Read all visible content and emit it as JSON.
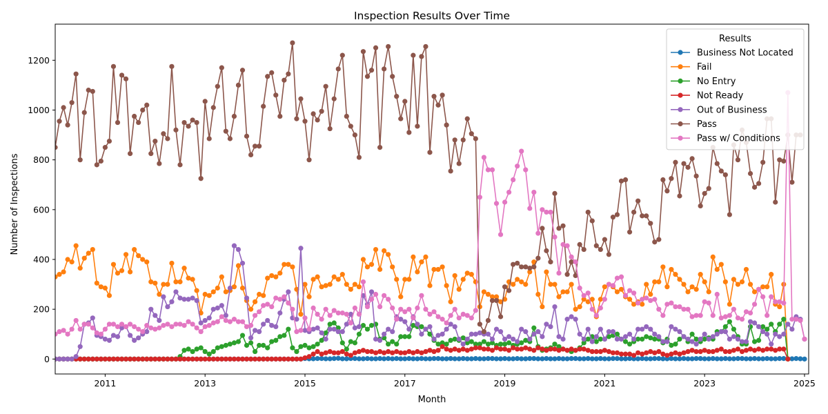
{
  "chart_data": {
    "type": "line",
    "title": "Inspection Results Over Time",
    "xlabel": "Month",
    "ylabel": "Number of Inspections",
    "x_start": "2010-01",
    "x_end": "2025-01",
    "xlim": [
      "2010-01",
      "2025-02"
    ],
    "ylim": [
      -60,
      1345
    ],
    "xticks": [
      {
        "date": "2011-01",
        "label": "2011"
      },
      {
        "date": "2013-01",
        "label": "2013"
      },
      {
        "date": "2015-01",
        "label": "2015"
      },
      {
        "date": "2017-01",
        "label": "2017"
      },
      {
        "date": "2019-01",
        "label": "2019"
      },
      {
        "date": "2021-01",
        "label": "2021"
      },
      {
        "date": "2023-01",
        "label": "2023"
      },
      {
        "date": "2025-01",
        "label": "2025"
      }
    ],
    "yticks": [
      0,
      200,
      400,
      600,
      800,
      1000,
      1200
    ],
    "grid": false,
    "legend": {
      "title": "Results",
      "position": "top-right"
    },
    "series": [
      {
        "name": "Business Not Located",
        "color": "#1f77b4",
        "values": [
          0,
          0,
          0,
          0,
          0,
          0,
          0,
          0,
          0,
          0,
          0,
          0,
          0,
          0,
          0,
          0,
          0,
          0,
          0,
          0,
          0,
          0,
          0,
          0,
          0,
          0,
          0,
          0,
          0,
          0,
          0,
          0,
          0,
          0,
          0,
          0,
          0,
          0,
          0,
          0,
          0,
          0,
          0,
          0,
          0,
          0,
          0,
          0,
          0,
          0,
          0,
          0,
          0,
          0,
          0,
          0,
          0,
          0,
          0,
          0,
          2,
          1,
          1,
          2,
          2,
          1,
          1,
          2,
          3,
          1,
          1,
          2,
          2,
          1,
          1,
          2,
          1,
          1,
          2,
          1,
          2,
          1,
          2,
          1,
          1,
          2,
          1,
          1,
          2,
          1,
          1,
          2,
          2,
          1,
          1,
          2,
          1,
          1,
          2,
          1,
          1,
          2,
          1,
          1,
          2,
          2,
          1,
          1,
          2,
          1,
          1,
          2,
          1,
          1,
          2,
          2,
          1,
          1,
          2,
          1,
          1,
          2,
          1,
          1,
          2,
          2,
          1,
          1,
          2,
          1,
          1,
          2,
          1,
          1,
          2,
          2,
          1,
          1,
          2,
          1,
          1,
          2,
          1,
          1,
          2,
          2,
          1,
          1,
          2,
          1,
          1,
          2,
          1,
          1,
          2,
          2,
          1,
          1,
          2,
          1,
          1,
          2,
          1,
          1,
          2,
          2,
          1,
          1,
          2,
          1,
          1,
          2,
          1,
          1,
          2,
          2,
          1,
          1,
          2,
          1,
          0
        ]
      },
      {
        "name": "Fail",
        "color": "#ff7f0e",
        "values": [
          330,
          340,
          350,
          400,
          390,
          455,
          365,
          405,
          425,
          440,
          305,
          290,
          285,
          255,
          380,
          345,
          355,
          420,
          350,
          440,
          415,
          400,
          390,
          310,
          305,
          260,
          300,
          300,
          385,
          310,
          310,
          365,
          325,
          320,
          275,
          185,
          260,
          255,
          270,
          285,
          330,
          270,
          275,
          290,
          375,
          285,
          235,
          200,
          230,
          260,
          255,
          325,
          335,
          330,
          345,
          380,
          380,
          370,
          280,
          180,
          300,
          250,
          320,
          330,
          290,
          295,
          300,
          330,
          320,
          340,
          300,
          280,
          300,
          290,
          400,
          370,
          380,
          440,
          360,
          435,
          420,
          370,
          320,
          250,
          320,
          320,
          410,
          350,
          390,
          410,
          295,
          360,
          360,
          370,
          295,
          230,
          335,
          280,
          320,
          345,
          340,
          310,
          210,
          270,
          260,
          250,
          250,
          230,
          240,
          310,
          300,
          320,
          310,
          300,
          350,
          390,
          260,
          210,
          350,
          300,
          300,
          250,
          270,
          270,
          300,
          200,
          210,
          240,
          230,
          240,
          170,
          240,
          290,
          300,
          290,
          270,
          280,
          250,
          240,
          220,
          230,
          220,
          300,
          260,
          310,
          310,
          370,
          290,
          360,
          340,
          320,
          300,
          270,
          290,
          280,
          340,
          310,
          270,
          410,
          360,
          380,
          310,
          220,
          320,
          300,
          310,
          360,
          300,
          270,
          280,
          290,
          290,
          340,
          220,
          210,
          300,
          0
        ]
      },
      {
        "name": "No Entry",
        "color": "#2ca02c",
        "values": [
          0,
          0,
          0,
          0,
          0,
          0,
          0,
          0,
          0,
          0,
          0,
          0,
          0,
          0,
          0,
          0,
          0,
          0,
          0,
          0,
          0,
          0,
          0,
          0,
          0,
          0,
          0,
          0,
          0,
          0,
          10,
          35,
          40,
          30,
          40,
          45,
          30,
          20,
          30,
          45,
          50,
          55,
          60,
          65,
          70,
          95,
          55,
          65,
          30,
          55,
          55,
          45,
          70,
          75,
          90,
          95,
          120,
          45,
          30,
          50,
          55,
          45,
          50,
          60,
          75,
          105,
          140,
          145,
          125,
          65,
          40,
          70,
          65,
          100,
          135,
          120,
          135,
          140,
          80,
          85,
          60,
          70,
          60,
          90,
          90,
          90,
          135,
          130,
          130,
          120,
          100,
          75,
          60,
          65,
          60,
          75,
          80,
          75,
          85,
          65,
          70,
          60,
          60,
          70,
          60,
          65,
          55,
          60,
          60,
          65,
          55,
          60,
          65,
          75,
          70,
          125,
          50,
          35,
          40,
          45,
          60,
          50,
          40,
          35,
          30,
          35,
          45,
          65,
          80,
          90,
          70,
          80,
          80,
          90,
          95,
          100,
          80,
          70,
          60,
          70,
          80,
          80,
          90,
          85,
          80,
          80,
          65,
          80,
          55,
          60,
          80,
          90,
          70,
          100,
          80,
          70,
          80,
          85,
          80,
          110,
          110,
          130,
          150,
          120,
          90,
          60,
          60,
          130,
          70,
          75,
          130,
          120,
          140,
          110,
          140,
          160,
          0
        ]
      },
      {
        "name": "Not Ready",
        "color": "#d62728",
        "values": [
          0,
          0,
          0,
          0,
          0,
          0,
          0,
          0,
          0,
          0,
          0,
          0,
          0,
          0,
          0,
          0,
          0,
          0,
          0,
          0,
          0,
          0,
          0,
          0,
          0,
          0,
          0,
          0,
          0,
          0,
          0,
          0,
          0,
          0,
          0,
          0,
          0,
          0,
          0,
          0,
          0,
          0,
          0,
          0,
          0,
          0,
          0,
          0,
          0,
          0,
          0,
          0,
          0,
          0,
          0,
          0,
          0,
          0,
          0,
          0,
          5,
          10,
          20,
          30,
          20,
          25,
          30,
          25,
          25,
          30,
          20,
          15,
          25,
          30,
          35,
          30,
          30,
          25,
          30,
          25,
          30,
          25,
          30,
          25,
          25,
          30,
          25,
          30,
          25,
          30,
          35,
          30,
          35,
          50,
          40,
          35,
          40,
          35,
          40,
          35,
          40,
          45,
          45,
          40,
          40,
          35,
          45,
          40,
          40,
          35,
          45,
          40,
          40,
          45,
          40,
          35,
          45,
          40,
          35,
          40,
          40,
          35,
          40,
          35,
          40,
          35,
          40,
          40,
          35,
          30,
          30,
          30,
          35,
          30,
          25,
          25,
          20,
          20,
          20,
          15,
          25,
          20,
          25,
          30,
          25,
          30,
          20,
          15,
          20,
          25,
          20,
          25,
          30,
          35,
          30,
          30,
          35,
          30,
          30,
          35,
          40,
          30,
          30,
          35,
          40,
          30,
          35,
          40,
          35,
          40,
          35,
          40,
          40,
          35,
          40,
          40,
          0
        ]
      },
      {
        "name": "Out of Business",
        "color": "#9467bd",
        "values": [
          0,
          0,
          0,
          0,
          0,
          10,
          50,
          140,
          145,
          165,
          95,
          90,
          80,
          75,
          95,
          90,
          125,
          130,
          95,
          75,
          85,
          100,
          110,
          200,
          175,
          155,
          250,
          210,
          230,
          270,
          245,
          240,
          240,
          245,
          235,
          145,
          155,
          165,
          200,
          205,
          215,
          175,
          285,
          455,
          440,
          385,
          245,
          85,
          115,
          110,
          140,
          155,
          135,
          130,
          185,
          240,
          270,
          165,
          160,
          445,
          115,
          110,
          120,
          125,
          105,
          80,
          120,
          120,
          110,
          110,
          140,
          180,
          125,
          130,
          255,
          220,
          270,
          80,
          75,
          100,
          120,
          110,
          170,
          160,
          150,
          120,
          170,
          140,
          100,
          120,
          130,
          80,
          95,
          100,
          120,
          140,
          130,
          80,
          60,
          80,
          100,
          100,
          105,
          100,
          100,
          80,
          120,
          110,
          80,
          90,
          80,
          70,
          120,
          110,
          80,
          100,
          110,
          90,
          140,
          130,
          210,
          90,
          80,
          160,
          170,
          160,
          100,
          80,
          120,
          70,
          90,
          120,
          80,
          110,
          110,
          80,
          80,
          90,
          100,
          80,
          120,
          120,
          130,
          120,
          100,
          90,
          70,
          70,
          130,
          120,
          110,
          90,
          80,
          70,
          60,
          80,
          100,
          80,
          90,
          100,
          110,
          110,
          80,
          90,
          80,
          70,
          70,
          150,
          145,
          130,
          110,
          100,
          60,
          100,
          90,
          100,
          140,
          120,
          170,
          160,
          80
        ]
      },
      {
        "name": "Pass",
        "color": "#8c564b",
        "values": [
          850,
          955,
          1010,
          940,
          1030,
          1145,
          800,
          990,
          1080,
          1075,
          780,
          795,
          850,
          875,
          1175,
          950,
          1140,
          1125,
          825,
          975,
          950,
          1000,
          1020,
          825,
          875,
          785,
          905,
          885,
          1175,
          920,
          780,
          950,
          935,
          960,
          950,
          725,
          1035,
          885,
          1010,
          1095,
          1170,
          915,
          885,
          975,
          1100,
          1160,
          895,
          820,
          855,
          855,
          1015,
          1135,
          1150,
          1060,
          975,
          1120,
          1145,
          1270,
          965,
          1045,
          955,
          800,
          985,
          960,
          995,
          1095,
          925,
          1045,
          1165,
          1220,
          975,
          935,
          900,
          810,
          1235,
          1135,
          1160,
          1250,
          850,
          1165,
          1255,
          1135,
          1055,
          965,
          1035,
          910,
          1220,
          935,
          1215,
          1255,
          830,
          1055,
          1020,
          1060,
          940,
          755,
          880,
          785,
          880,
          965,
          905,
          885,
          140,
          110,
          155,
          235,
          235,
          170,
          290,
          275,
          380,
          385,
          370,
          370,
          365,
          370,
          405,
          525,
          435,
          390,
          665,
          525,
          535,
          340,
          390,
          335,
          460,
          440,
          590,
          555,
          455,
          440,
          480,
          420,
          570,
          580,
          715,
          720,
          510,
          590,
          635,
          575,
          575,
          545,
          470,
          480,
          720,
          675,
          725,
          790,
          655,
          785,
          770,
          805,
          735,
          615,
          665,
          685,
          850,
          785,
          755,
          740,
          580,
          860,
          800,
          920,
          870,
          745,
          690,
          705,
          790,
          965,
          965,
          630,
          800,
          795,
          900,
          710,
          900,
          900
        ]
      },
      {
        "name": "Pass w/ Conditions",
        "color": "#e377c2",
        "values": [
          100,
          110,
          115,
          100,
          120,
          155,
          120,
          140,
          140,
          125,
          105,
          100,
          120,
          140,
          140,
          130,
          140,
          130,
          140,
          130,
          120,
          110,
          135,
          125,
          120,
          125,
          135,
          140,
          130,
          140,
          140,
          135,
          150,
          140,
          125,
          110,
          130,
          135,
          145,
          150,
          170,
          155,
          150,
          160,
          150,
          150,
          130,
          135,
          175,
          190,
          215,
          220,
          210,
          245,
          240,
          250,
          225,
          200,
          110,
          115,
          165,
          120,
          205,
          180,
          160,
          200,
          175,
          195,
          185,
          185,
          180,
          145,
          205,
          180,
          310,
          210,
          240,
          260,
          210,
          255,
          240,
          205,
          160,
          200,
          190,
          200,
          165,
          205,
          255,
          200,
          180,
          190,
          170,
          160,
          145,
          175,
          200,
          165,
          180,
          175,
          165,
          195,
          650,
          810,
          760,
          760,
          625,
          500,
          630,
          670,
          720,
          775,
          835,
          760,
          605,
          670,
          505,
          600,
          590,
          590,
          490,
          345,
          460,
          455,
          410,
          390,
          285,
          255,
          265,
          200,
          175,
          205,
          240,
          300,
          295,
          325,
          330,
          255,
          275,
          265,
          225,
          240,
          245,
          235,
          240,
          200,
          175,
          220,
          225,
          210,
          210,
          200,
          200,
          170,
          175,
          175,
          230,
          225,
          175,
          260,
          165,
          170,
          175,
          200,
          165,
          160,
          190,
          185,
          220,
          280,
          250,
          175,
          250,
          230,
          230,
          225,
          1070,
          160,
          160,
          155,
          80
        ]
      }
    ]
  }
}
